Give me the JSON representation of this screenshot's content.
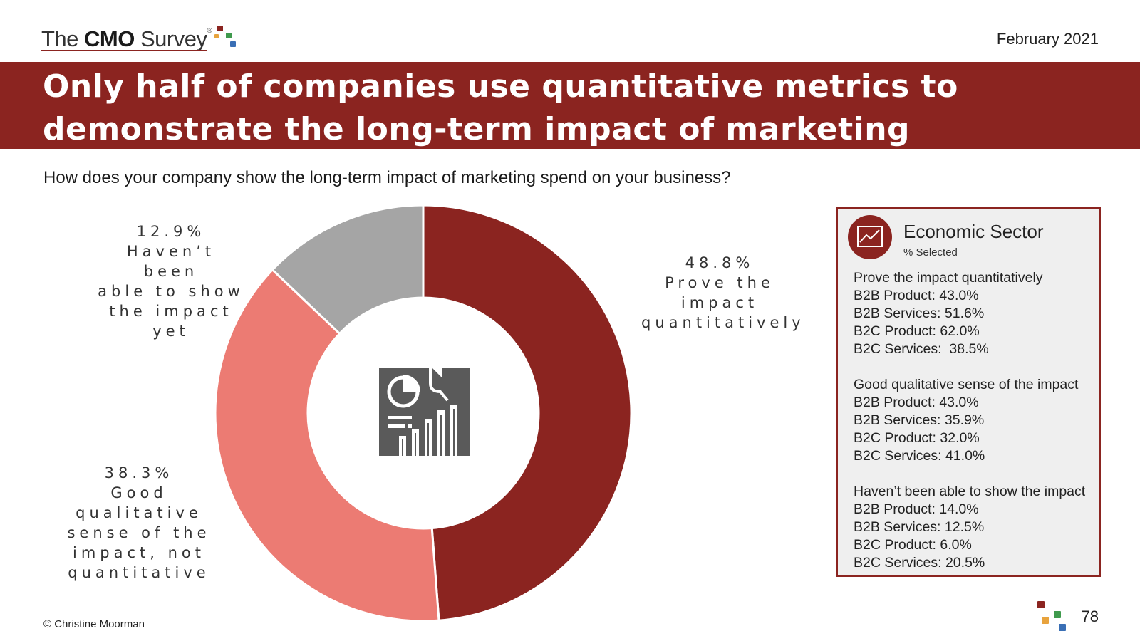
{
  "header": {
    "logo": {
      "prefix": "The ",
      "brand": "CMO",
      "suffix": " Survey",
      "reg": "®"
    },
    "date": "February 2021"
  },
  "title": "Only half of companies use quantitative metrics to demonstrate the long-term impact of marketing",
  "question": "How does your company show the long-term impact of marketing spend on your business?",
  "center_icon": "report-chart-icon",
  "chart_data": {
    "type": "pie",
    "variant": "donut",
    "title": "How does your company show the long-term impact of marketing spend on your business?",
    "slices": [
      {
        "label": "Prove the impact quantitatively",
        "value": 48.8,
        "display": "48.8%",
        "color": "#8b2420"
      },
      {
        "label": "Good qualitative sense of the impact, not quantitative",
        "value": 38.3,
        "display": "38.3%",
        "color": "#ec7b73"
      },
      {
        "label": "Haven’t been able to show the impact yet",
        "value": 12.9,
        "display": "12.9%",
        "color": "#a5a5a5"
      }
    ],
    "label_lines": [
      [
        "Prove the",
        "impact",
        "quantitatively"
      ],
      [
        "Good",
        "qualitative",
        "sense of the",
        "impact, not",
        "quantitative"
      ],
      [
        "Haven’t been",
        "able to show",
        "the impact",
        "yet"
      ]
    ]
  },
  "panel": {
    "icon": "line-chart-icon",
    "title": "Economic Sector",
    "subtitle": "% Selected",
    "groups": [
      {
        "heading": "Prove the impact quantitatively",
        "rows": [
          "B2B Product: 43.0%",
          "B2B Services: 51.6%",
          "B2C Product: 62.0%",
          "B2C Services:  38.5%"
        ]
      },
      {
        "heading": "Good qualitative sense of the impact",
        "rows": [
          "B2B Product: 43.0%",
          "B2B Services: 35.9%",
          "B2C Product: 32.0%",
          "B2C Services: 41.0%"
        ]
      },
      {
        "heading": "Haven’t been able to show the impact",
        "rows": [
          "B2B Product: 14.0%",
          "B2B Services: 12.5%",
          "B2C Product: 6.0%",
          "B2C Services: 20.5%"
        ]
      }
    ]
  },
  "footer": {
    "copyright": "© Christine Moorman",
    "page": "78"
  },
  "colors": {
    "brand": "#8b2420",
    "salmon": "#ec7b73",
    "gray": "#a5a5a5",
    "logo_orange": "#e8a33d",
    "logo_green": "#3f9a4d",
    "logo_blue": "#3a6fb5"
  }
}
